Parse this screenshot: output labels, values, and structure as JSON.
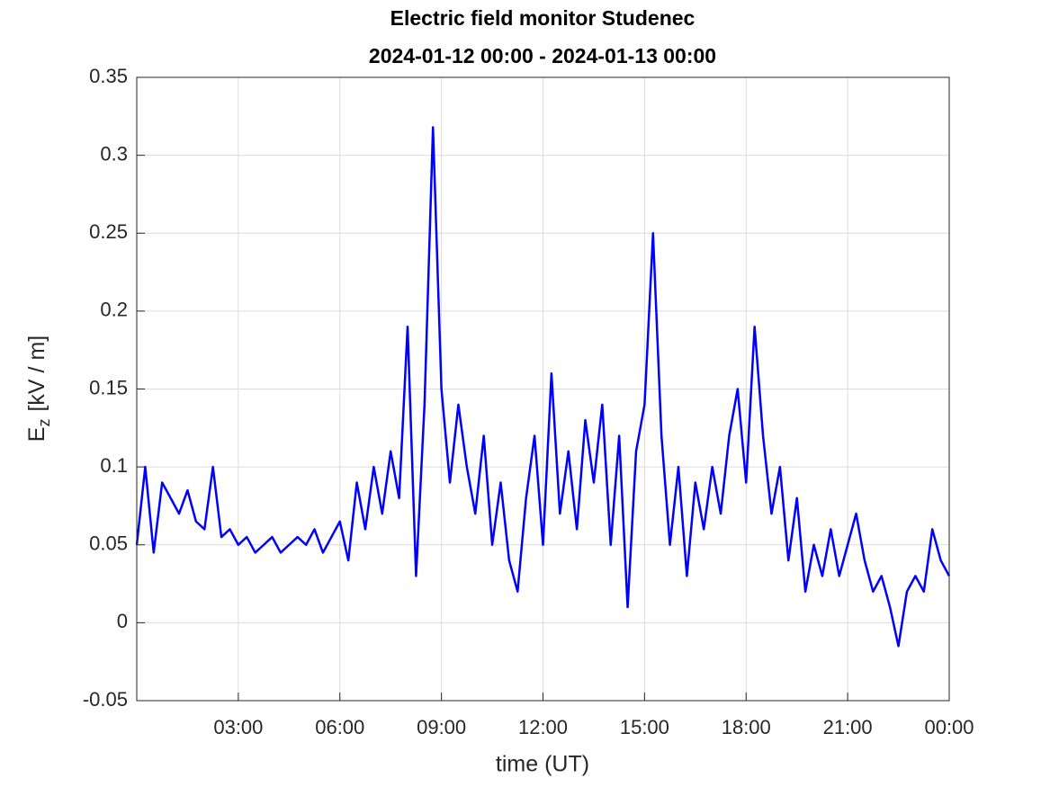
{
  "chart_data": {
    "type": "line",
    "title": [
      "Electric field monitor Studenec",
      "2024-01-12 00:00 - 2024-01-13 00:00"
    ],
    "x_label": "time (UT)",
    "y_label": {
      "symbol": "E",
      "subscript": "z",
      "unit": "[kV / m]"
    },
    "color": "#0000ff",
    "grid": true,
    "xlim": [
      0,
      24
    ],
    "xticks": [
      {
        "value": 3,
        "label": "03:00"
      },
      {
        "value": 6,
        "label": "06:00"
      },
      {
        "value": 9,
        "label": "09:00"
      },
      {
        "value": 12,
        "label": "12:00"
      },
      {
        "value": 15,
        "label": "15:00"
      },
      {
        "value": 18,
        "label": "18:00"
      },
      {
        "value": 21,
        "label": "21:00"
      },
      {
        "value": 24,
        "label": "00:00"
      }
    ],
    "ylim": [
      -0.05,
      0.35
    ],
    "yticks": [
      -0.05,
      0,
      0.05,
      0.1,
      0.15,
      0.2,
      0.25,
      0.3,
      0.35
    ],
    "x": [
      0,
      0.25,
      0.5,
      0.75,
      1,
      1.25,
      1.5,
      1.75,
      2,
      2.25,
      2.5,
      2.75,
      3,
      3.25,
      3.5,
      3.75,
      4,
      4.25,
      4.5,
      4.75,
      5,
      5.25,
      5.5,
      5.75,
      6,
      6.25,
      6.5,
      6.75,
      7,
      7.25,
      7.5,
      7.75,
      8,
      8.25,
      8.5,
      8.75,
      9,
      9.25,
      9.5,
      9.75,
      10,
      10.25,
      10.5,
      10.75,
      11,
      11.25,
      11.5,
      11.75,
      12,
      12.25,
      12.5,
      12.75,
      13,
      13.25,
      13.5,
      13.75,
      14,
      14.25,
      14.5,
      14.75,
      15,
      15.25,
      15.5,
      15.75,
      16,
      16.25,
      16.5,
      16.75,
      17,
      17.25,
      17.5,
      17.75,
      18,
      18.25,
      18.5,
      18.75,
      19,
      19.25,
      19.5,
      19.75,
      20,
      20.25,
      20.5,
      20.75,
      21,
      21.25,
      21.5,
      21.75,
      22,
      22.25,
      22.5,
      22.75,
      23,
      23.25,
      23.5,
      23.75,
      24
    ],
    "values": [
      0.05,
      0.1,
      0.045,
      0.09,
      0.08,
      0.07,
      0.085,
      0.065,
      0.06,
      0.1,
      0.055,
      0.06,
      0.05,
      0.055,
      0.045,
      0.05,
      0.055,
      0.045,
      0.05,
      0.055,
      0.05,
      0.06,
      0.045,
      0.055,
      0.065,
      0.04,
      0.09,
      0.06,
      0.1,
      0.07,
      0.11,
      0.08,
      0.19,
      0.03,
      0.14,
      0.318,
      0.15,
      0.09,
      0.14,
      0.1,
      0.07,
      0.12,
      0.05,
      0.09,
      0.04,
      0.02,
      0.08,
      0.12,
      0.05,
      0.16,
      0.07,
      0.11,
      0.06,
      0.13,
      0.09,
      0.14,
      0.05,
      0.12,
      0.01,
      0.11,
      0.14,
      0.25,
      0.12,
      0.05,
      0.1,
      0.03,
      0.09,
      0.06,
      0.1,
      0.07,
      0.12,
      0.15,
      0.09,
      0.19,
      0.12,
      0.07,
      0.1,
      0.04,
      0.08,
      0.02,
      0.05,
      0.03,
      0.06,
      0.03,
      0.05,
      0.07,
      0.04,
      0.02,
      0.03,
      0.01,
      -0.015,
      0.02,
      0.03,
      0.02,
      0.06,
      0.04,
      0.03
    ]
  }
}
